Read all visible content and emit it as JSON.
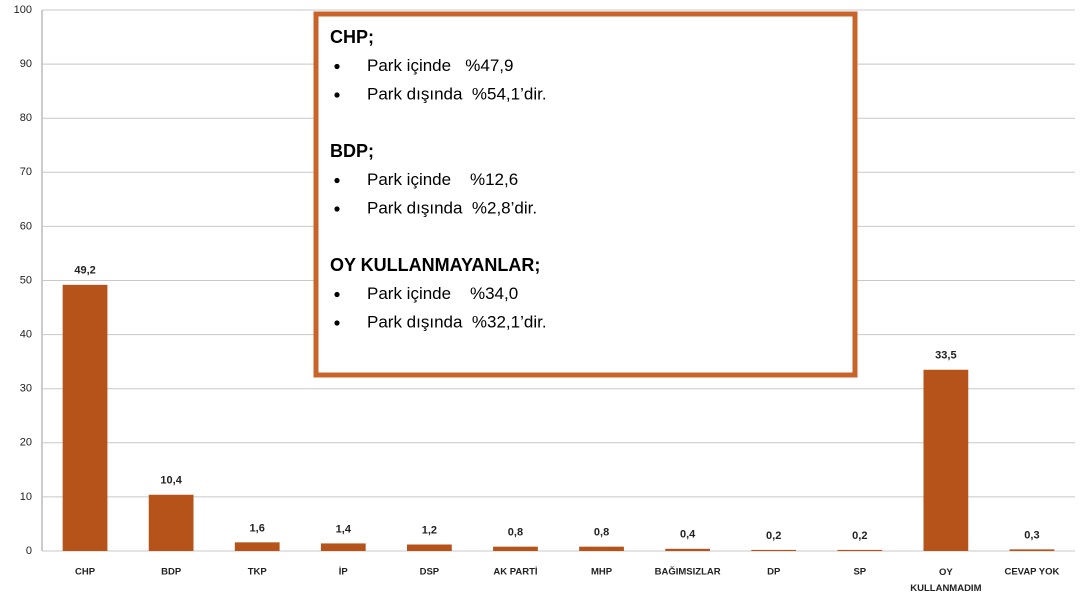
{
  "chart_data": {
    "type": "bar",
    "categories": [
      "CHP",
      "BDP",
      "TKP",
      "İP",
      "DSP",
      "AK PARTİ",
      "MHP",
      "BAĞIMSIZLAR",
      "DP",
      "SP",
      "OY KULLANMADIM",
      "CEVAP YOK"
    ],
    "values": [
      49.2,
      10.4,
      1.6,
      1.4,
      1.2,
      0.8,
      0.8,
      0.4,
      0.2,
      0.2,
      33.5,
      0.3
    ],
    "value_labels": [
      "49,2",
      "10,4",
      "1,6",
      "1,4",
      "1,2",
      "0,8",
      "0,8",
      "0,4",
      "0,2",
      "0,2",
      "33,5",
      "0,3"
    ],
    "color": "#b5531a",
    "ylim": [
      0,
      100
    ],
    "yticks": [
      0,
      10,
      20,
      30,
      40,
      50,
      60,
      70,
      80,
      90,
      100
    ],
    "grid": true,
    "annotation": [
      {
        "heading": "CHP;",
        "items": [
          "Park içinde   %47,9",
          "Park dışında  %54,1’dir."
        ]
      },
      {
        "heading": "BDP;",
        "items": [
          "Park içinde    %12,6",
          "Park dışında  %2,8’dir."
        ]
      },
      {
        "heading": "OY KULLANMAYANLAR;",
        "items": [
          "Park içinde    %34,0",
          "Park dışında  %32,1’dir."
        ]
      }
    ]
  }
}
